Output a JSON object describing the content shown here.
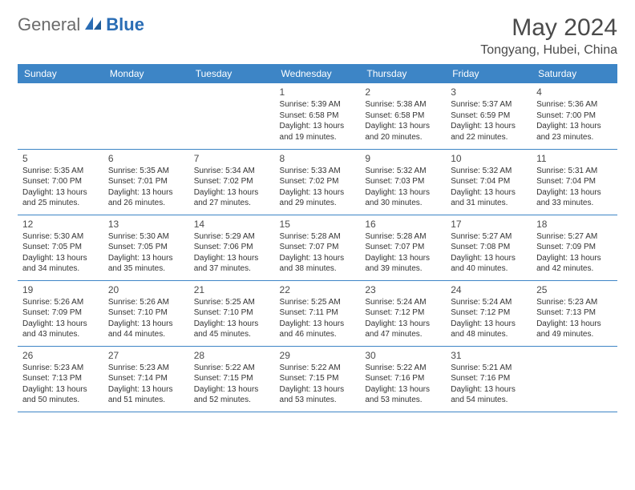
{
  "logo": {
    "general": "General",
    "blue": "Blue"
  },
  "title": "May 2024",
  "location": "Tongyang, Hubei, China",
  "day_headers": [
    "Sunday",
    "Monday",
    "Tuesday",
    "Wednesday",
    "Thursday",
    "Friday",
    "Saturday"
  ],
  "colors": {
    "header_bg": "#3d85c6",
    "header_text": "#ffffff",
    "border": "#3d85c6",
    "logo_general": "#6b6b6b",
    "logo_blue": "#2a6db5",
    "title_color": "#4a4a4a",
    "detail_text": "#333333"
  },
  "weeks": [
    [
      null,
      null,
      null,
      {
        "n": "1",
        "sr": "5:39 AM",
        "ss": "6:58 PM",
        "dl": "13 hours and 19 minutes."
      },
      {
        "n": "2",
        "sr": "5:38 AM",
        "ss": "6:58 PM",
        "dl": "13 hours and 20 minutes."
      },
      {
        "n": "3",
        "sr": "5:37 AM",
        "ss": "6:59 PM",
        "dl": "13 hours and 22 minutes."
      },
      {
        "n": "4",
        "sr": "5:36 AM",
        "ss": "7:00 PM",
        "dl": "13 hours and 23 minutes."
      }
    ],
    [
      {
        "n": "5",
        "sr": "5:35 AM",
        "ss": "7:00 PM",
        "dl": "13 hours and 25 minutes."
      },
      {
        "n": "6",
        "sr": "5:35 AM",
        "ss": "7:01 PM",
        "dl": "13 hours and 26 minutes."
      },
      {
        "n": "7",
        "sr": "5:34 AM",
        "ss": "7:02 PM",
        "dl": "13 hours and 27 minutes."
      },
      {
        "n": "8",
        "sr": "5:33 AM",
        "ss": "7:02 PM",
        "dl": "13 hours and 29 minutes."
      },
      {
        "n": "9",
        "sr": "5:32 AM",
        "ss": "7:03 PM",
        "dl": "13 hours and 30 minutes."
      },
      {
        "n": "10",
        "sr": "5:32 AM",
        "ss": "7:04 PM",
        "dl": "13 hours and 31 minutes."
      },
      {
        "n": "11",
        "sr": "5:31 AM",
        "ss": "7:04 PM",
        "dl": "13 hours and 33 minutes."
      }
    ],
    [
      {
        "n": "12",
        "sr": "5:30 AM",
        "ss": "7:05 PM",
        "dl": "13 hours and 34 minutes."
      },
      {
        "n": "13",
        "sr": "5:30 AM",
        "ss": "7:05 PM",
        "dl": "13 hours and 35 minutes."
      },
      {
        "n": "14",
        "sr": "5:29 AM",
        "ss": "7:06 PM",
        "dl": "13 hours and 37 minutes."
      },
      {
        "n": "15",
        "sr": "5:28 AM",
        "ss": "7:07 PM",
        "dl": "13 hours and 38 minutes."
      },
      {
        "n": "16",
        "sr": "5:28 AM",
        "ss": "7:07 PM",
        "dl": "13 hours and 39 minutes."
      },
      {
        "n": "17",
        "sr": "5:27 AM",
        "ss": "7:08 PM",
        "dl": "13 hours and 40 minutes."
      },
      {
        "n": "18",
        "sr": "5:27 AM",
        "ss": "7:09 PM",
        "dl": "13 hours and 42 minutes."
      }
    ],
    [
      {
        "n": "19",
        "sr": "5:26 AM",
        "ss": "7:09 PM",
        "dl": "13 hours and 43 minutes."
      },
      {
        "n": "20",
        "sr": "5:26 AM",
        "ss": "7:10 PM",
        "dl": "13 hours and 44 minutes."
      },
      {
        "n": "21",
        "sr": "5:25 AM",
        "ss": "7:10 PM",
        "dl": "13 hours and 45 minutes."
      },
      {
        "n": "22",
        "sr": "5:25 AM",
        "ss": "7:11 PM",
        "dl": "13 hours and 46 minutes."
      },
      {
        "n": "23",
        "sr": "5:24 AM",
        "ss": "7:12 PM",
        "dl": "13 hours and 47 minutes."
      },
      {
        "n": "24",
        "sr": "5:24 AM",
        "ss": "7:12 PM",
        "dl": "13 hours and 48 minutes."
      },
      {
        "n": "25",
        "sr": "5:23 AM",
        "ss": "7:13 PM",
        "dl": "13 hours and 49 minutes."
      }
    ],
    [
      {
        "n": "26",
        "sr": "5:23 AM",
        "ss": "7:13 PM",
        "dl": "13 hours and 50 minutes."
      },
      {
        "n": "27",
        "sr": "5:23 AM",
        "ss": "7:14 PM",
        "dl": "13 hours and 51 minutes."
      },
      {
        "n": "28",
        "sr": "5:22 AM",
        "ss": "7:15 PM",
        "dl": "13 hours and 52 minutes."
      },
      {
        "n": "29",
        "sr": "5:22 AM",
        "ss": "7:15 PM",
        "dl": "13 hours and 53 minutes."
      },
      {
        "n": "30",
        "sr": "5:22 AM",
        "ss": "7:16 PM",
        "dl": "13 hours and 53 minutes."
      },
      {
        "n": "31",
        "sr": "5:21 AM",
        "ss": "7:16 PM",
        "dl": "13 hours and 54 minutes."
      },
      null
    ]
  ],
  "labels": {
    "sunrise": "Sunrise:",
    "sunset": "Sunset:",
    "daylight": "Daylight:"
  }
}
